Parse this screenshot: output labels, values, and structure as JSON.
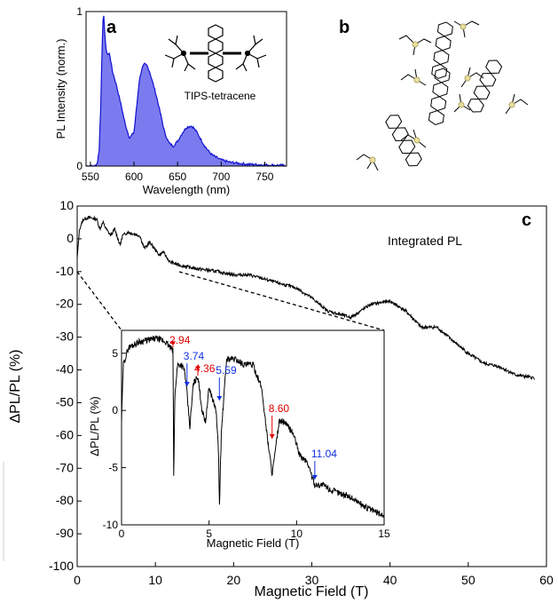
{
  "panels": {
    "a": "a",
    "b": "b",
    "c": "c"
  },
  "molecule_label": "TIPS-tetracene",
  "colors": {
    "spectrum_fill": "#7b7bef",
    "spectrum_line": "#1010d0",
    "trace": "#000000",
    "red": "#e00000",
    "blue": "#1030e0"
  },
  "chart_data": [
    {
      "panel": "a",
      "type": "area",
      "xlabel": "Wavelength (nm)",
      "ylabel": "PL Intensity (norm.)",
      "xlim": [
        545,
        775
      ],
      "ylim": [
        0,
        1
      ],
      "xticks": [
        550,
        600,
        650,
        700,
        750
      ],
      "yticks": [
        0,
        1
      ],
      "x": [
        545,
        555,
        558,
        560,
        562,
        563,
        564,
        565,
        566,
        568,
        570,
        572,
        575,
        580,
        585,
        590,
        595,
        600,
        603,
        606,
        609,
        612,
        615,
        618,
        621,
        625,
        630,
        635,
        640,
        645,
        650,
        655,
        660,
        665,
        668,
        672,
        676,
        680,
        685,
        690,
        700,
        710,
        720,
        730,
        740,
        750,
        760,
        770,
        775
      ],
      "y": [
        0.0,
        0.0,
        0.02,
        0.1,
        0.4,
        0.7,
        0.88,
        1.0,
        0.9,
        0.75,
        0.72,
        0.73,
        0.62,
        0.52,
        0.4,
        0.27,
        0.18,
        0.22,
        0.38,
        0.55,
        0.63,
        0.66,
        0.65,
        0.61,
        0.55,
        0.47,
        0.35,
        0.22,
        0.15,
        0.13,
        0.16,
        0.21,
        0.25,
        0.26,
        0.25,
        0.22,
        0.18,
        0.14,
        0.1,
        0.07,
        0.04,
        0.025,
        0.018,
        0.012,
        0.01,
        0.008,
        0.006,
        0.005,
        0.004
      ]
    },
    {
      "panel": "c",
      "type": "line",
      "xlabel": "Magnetic Field (T)",
      "ylabel": "ΔPL/PL (%)",
      "annotation": "Integrated PL",
      "xlim": [
        0,
        60
      ],
      "ylim": [
        -100,
        10
      ],
      "xticks": [
        0,
        10,
        20,
        30,
        40,
        50,
        60
      ],
      "yticks": [
        10,
        0,
        -10,
        -20,
        -30,
        -40,
        -50,
        -60,
        -70,
        -80,
        -90,
        -100
      ],
      "x": [
        0,
        0.3,
        0.8,
        1.5,
        2.5,
        2.9,
        3.3,
        3.7,
        4.3,
        4.8,
        5.5,
        5.8,
        6.5,
        8.0,
        8.6,
        9.3,
        10.5,
        11.0,
        11.8,
        13,
        15,
        18,
        20,
        22,
        25,
        28,
        30,
        32,
        35,
        37.5,
        40,
        42,
        44,
        46,
        48,
        50,
        52,
        54,
        56,
        58.5
      ],
      "y": [
        -6,
        3,
        6,
        6.5,
        6,
        3,
        5,
        3,
        1,
        3,
        -2,
        1,
        2,
        1,
        -3,
        -1,
        -5,
        -4,
        -7,
        -8,
        -9,
        -10,
        -11,
        -11,
        -13,
        -15,
        -18,
        -22,
        -24,
        -20,
        -19,
        -22,
        -27,
        -27,
        -31,
        -35,
        -38,
        -39,
        -41.5,
        -42.5
      ]
    },
    {
      "panel": "c-inset",
      "type": "line",
      "xlabel": "Magnetic Field (T)",
      "ylabel": "ΔPL/PL (%)",
      "xlim": [
        0,
        15
      ],
      "ylim": [
        -10,
        7
      ],
      "xticks": [
        0,
        5,
        10,
        15
      ],
      "yticks": [
        5,
        0,
        -5,
        -10
      ],
      "x": [
        0,
        0.1,
        0.4,
        1.0,
        2.0,
        2.5,
        2.94,
        2.98,
        3.05,
        3.2,
        3.4,
        3.6,
        3.74,
        3.9,
        4.1,
        4.36,
        4.6,
        4.8,
        5.0,
        5.4,
        5.55,
        5.59,
        5.7,
        6.0,
        6.5,
        7.0,
        7.5,
        8.0,
        8.3,
        8.6,
        8.75,
        9.0,
        9.3,
        9.8,
        10.2,
        10.6,
        11.04,
        11.5,
        12,
        13,
        14,
        15
      ],
      "y": [
        -1,
        4,
        5.5,
        6,
        6.3,
        6,
        5.2,
        -6,
        1.5,
        4,
        4,
        3.5,
        1.5,
        -1.5,
        2.3,
        3,
        0,
        -1,
        2,
        0,
        -4,
        -8.5,
        -2,
        4.5,
        4.5,
        4,
        4,
        2,
        -2,
        -5.5,
        -4,
        -1,
        -1,
        -2,
        -4,
        -4.5,
        -6.5,
        -6.5,
        -7,
        -7.5,
        -8.5,
        -9.2
      ]
    }
  ],
  "inset_markers": [
    {
      "label": "2.94",
      "x": 2.94,
      "color": "red"
    },
    {
      "label": "3.74",
      "x": 3.74,
      "color": "blue"
    },
    {
      "label": "4.36",
      "x": 4.36,
      "color": "red"
    },
    {
      "label": "5.59",
      "x": 5.59,
      "color": "blue"
    },
    {
      "label": "8.60",
      "x": 8.6,
      "color": "red"
    },
    {
      "label": "11.04",
      "x": 11.04,
      "color": "blue"
    }
  ]
}
